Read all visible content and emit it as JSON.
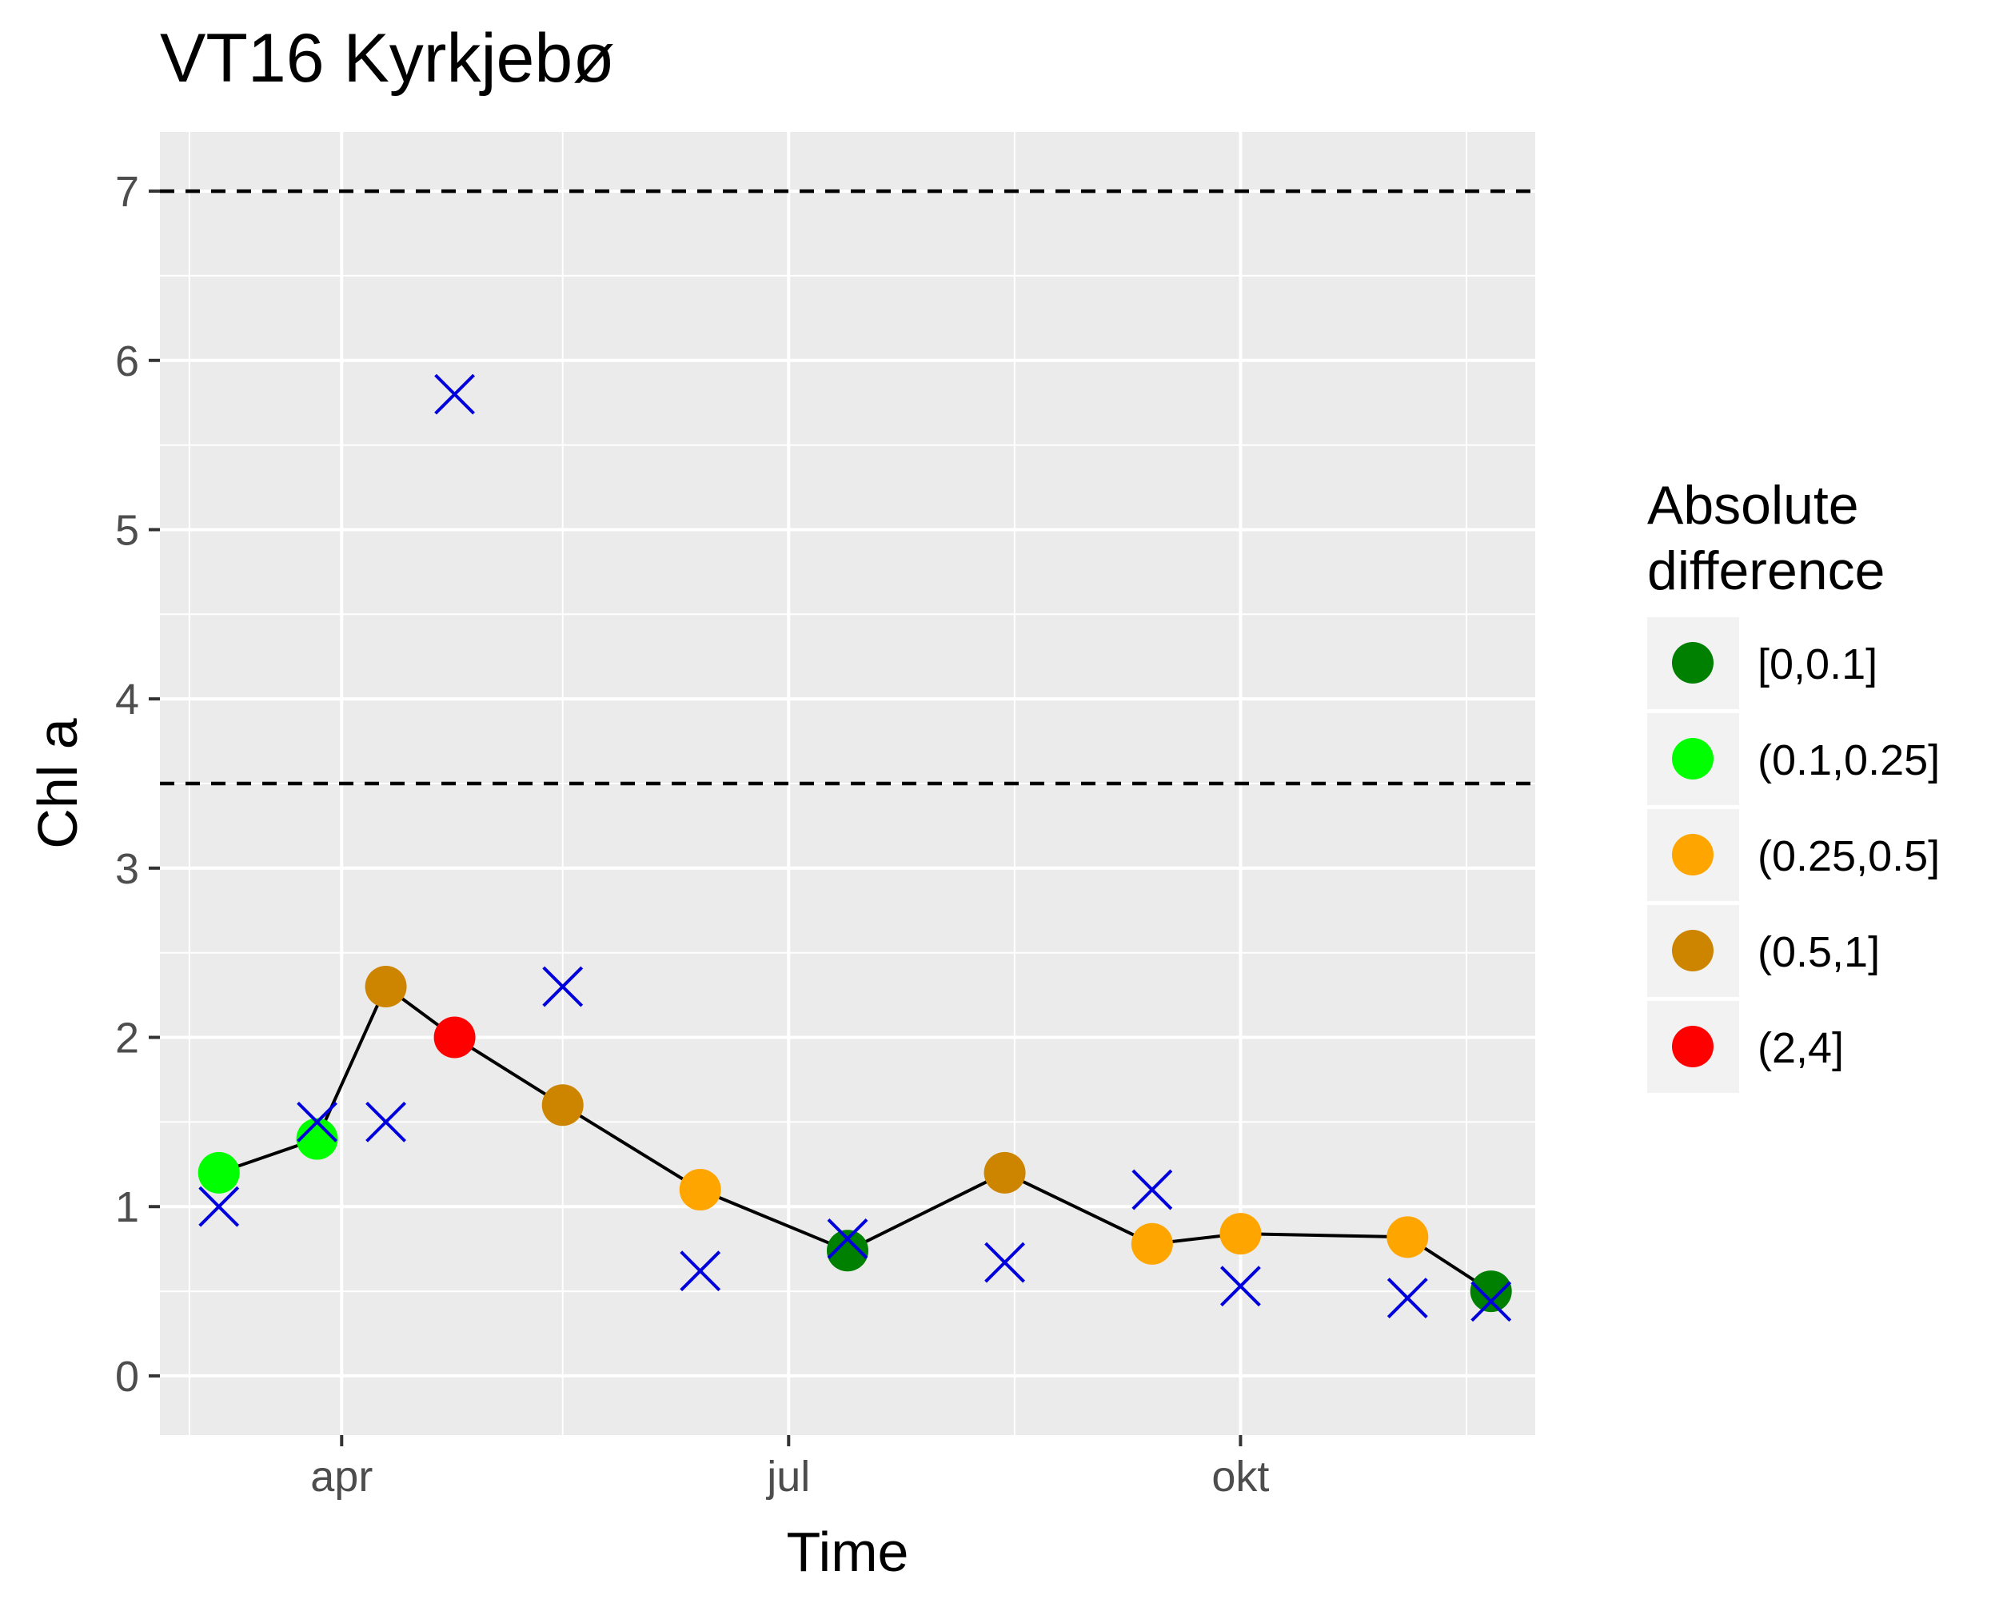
{
  "chart_data": {
    "type": "scatter",
    "title": "VT16 Kyrkjebø",
    "xlabel": "Time",
    "ylabel": "Chl a",
    "xlim": [
      "2017-02-23",
      "2017-11-30"
    ],
    "ylim": [
      -0.35,
      7.35
    ],
    "x_ticks": [
      {
        "date": "2017-04-01",
        "label": "apr"
      },
      {
        "date": "2017-07-01",
        "label": "jul"
      },
      {
        "date": "2017-10-01",
        "label": "okt"
      }
    ],
    "x_minor_ticks": [
      "2017-03-01",
      "2017-05-16",
      "2017-08-16",
      "2017-11-16"
    ],
    "y_ticks": [
      0,
      1,
      2,
      3,
      4,
      5,
      6,
      7
    ],
    "grid": true,
    "reference_lines": [
      3.5,
      7
    ],
    "legend": {
      "title_lines": [
        "Absolute",
        "difference"
      ],
      "position": "right",
      "entries": [
        {
          "label": "[0,0.1]",
          "color": "#008000"
        },
        {
          "label": "(0.1,0.25]",
          "color": "#00ff00"
        },
        {
          "label": "(0.25,0.5]",
          "color": "#ffa500"
        },
        {
          "label": "(0.5,1]",
          "color": "#cd8500"
        },
        {
          "label": "(2,4]",
          "color": "#ff0000"
        }
      ]
    },
    "series": [
      {
        "kind": "line+points",
        "points": [
          {
            "x": "2017-03-07",
            "y": 1.2,
            "bin": "(0.1,0.25]"
          },
          {
            "x": "2017-03-27",
            "y": 1.4,
            "bin": "(0.1,0.25]"
          },
          {
            "x": "2017-04-10",
            "y": 2.3,
            "bin": "(0.5,1]"
          },
          {
            "x": "2017-04-24",
            "y": 2.0,
            "bin": "(2,4]"
          },
          {
            "x": "2017-05-16",
            "y": 1.6,
            "bin": "(0.5,1]"
          },
          {
            "x": "2017-06-13",
            "y": 1.1,
            "bin": "(0.25,0.5]"
          },
          {
            "x": "2017-07-13",
            "y": 0.74,
            "bin": "[0,0.1]"
          },
          {
            "x": "2017-08-14",
            "y": 1.2,
            "bin": "(0.5,1]"
          },
          {
            "x": "2017-09-13",
            "y": 0.78,
            "bin": "(0.25,0.5]"
          },
          {
            "x": "2017-10-01",
            "y": 0.84,
            "bin": "(0.25,0.5]"
          },
          {
            "x": "2017-11-04",
            "y": 0.82,
            "bin": "(0.25,0.5]"
          },
          {
            "x": "2017-11-21",
            "y": 0.5,
            "bin": "[0,0.1]"
          }
        ]
      },
      {
        "kind": "crosses",
        "color": "#0000dd",
        "points": [
          {
            "x": "2017-03-07",
            "y": 1.0
          },
          {
            "x": "2017-03-27",
            "y": 1.5
          },
          {
            "x": "2017-04-10",
            "y": 1.5
          },
          {
            "x": "2017-04-24",
            "y": 5.8
          },
          {
            "x": "2017-05-16",
            "y": 2.3
          },
          {
            "x": "2017-06-13",
            "y": 0.62
          },
          {
            "x": "2017-07-13",
            "y": 0.81
          },
          {
            "x": "2017-08-14",
            "y": 0.67
          },
          {
            "x": "2017-09-13",
            "y": 1.1
          },
          {
            "x": "2017-10-01",
            "y": 0.53
          },
          {
            "x": "2017-11-04",
            "y": 0.46
          },
          {
            "x": "2017-11-21",
            "y": 0.44
          }
        ]
      }
    ]
  }
}
